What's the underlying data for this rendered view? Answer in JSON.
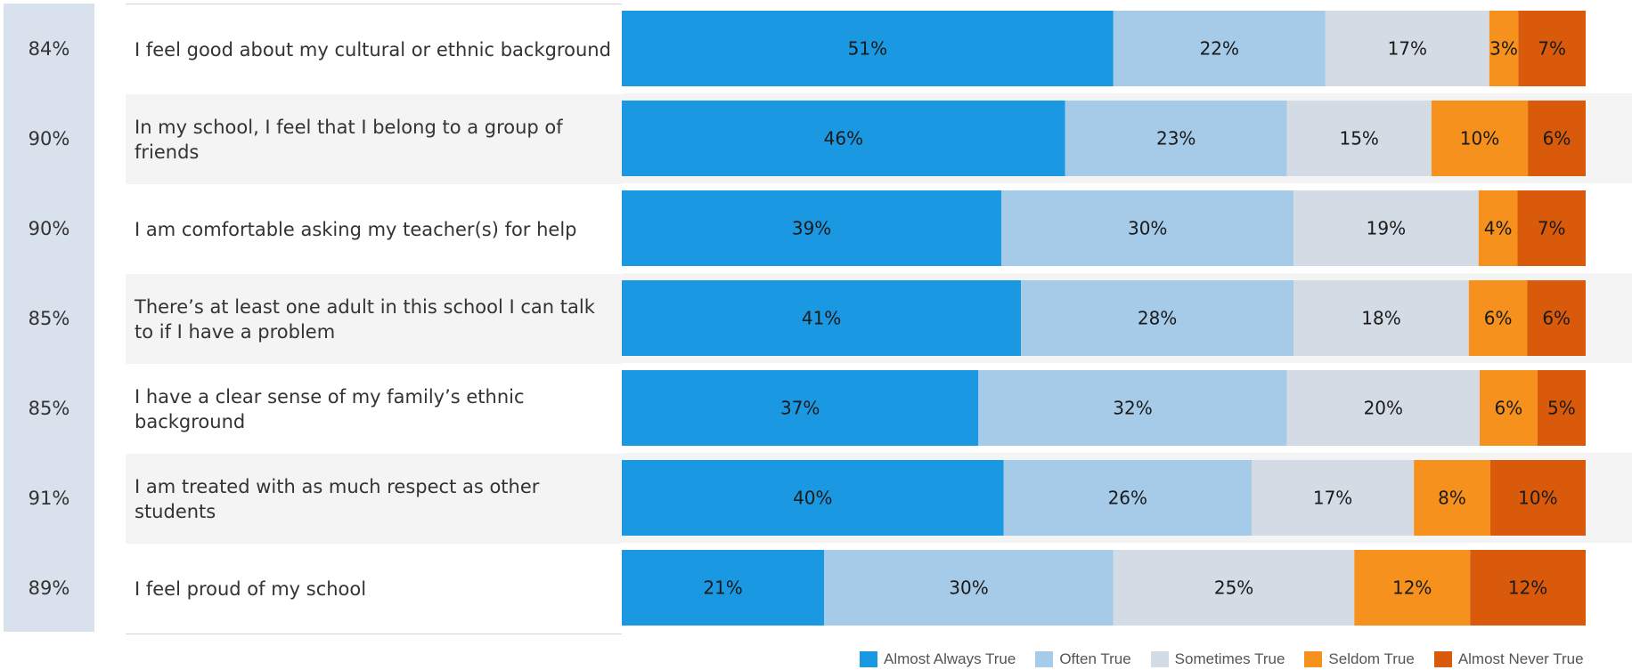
{
  "chart_data": {
    "type": "bar",
    "orientation": "horizontal",
    "stacked": true,
    "categories": [
      "I feel good about my cultural or ethnic background",
      "In my school, I feel that I belong to a group of friends",
      "I am comfortable asking my teacher(s) for help",
      "There’s at least one adult in this school I can talk to if I have a problem",
      "I have a clear sense of my family’s ethnic background",
      "I am treated with as much respect as other students",
      "I feel proud of my school"
    ],
    "summary_percent": [
      "84%",
      "90%",
      "90%",
      "85%",
      "85%",
      "91%",
      "89%"
    ],
    "series": [
      {
        "name": "Almost Always True",
        "color": "#1a98e2",
        "values": [
          51,
          46,
          39,
          41,
          37,
          40,
          21
        ]
      },
      {
        "name": "Often True",
        "color": "#a6cbe8",
        "values": [
          22,
          23,
          30,
          28,
          32,
          26,
          30
        ]
      },
      {
        "name": "Sometimes True",
        "color": "#d3dbe4",
        "values": [
          17,
          15,
          19,
          18,
          20,
          17,
          25
        ]
      },
      {
        "name": "Seldom True",
        "color": "#f6911d",
        "values": [
          3,
          10,
          4,
          6,
          6,
          8,
          12
        ]
      },
      {
        "name": "Almost Never True",
        "color": "#d95a0b",
        "values": [
          7,
          6,
          7,
          6,
          5,
          10,
          12
        ]
      }
    ],
    "legend_position": "bottom-right",
    "grid": false
  }
}
